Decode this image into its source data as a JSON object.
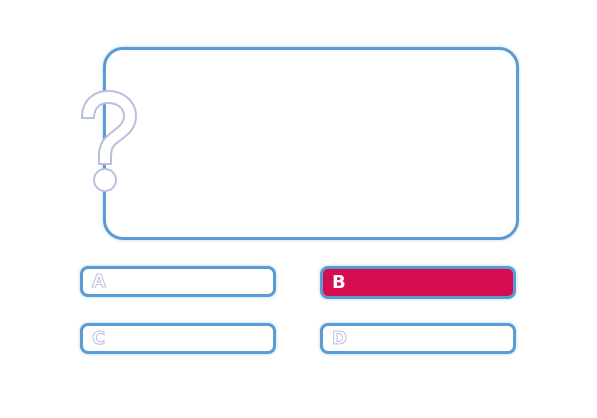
{
  "question": {
    "text": "",
    "icon": "question-mark-icon"
  },
  "options": [
    {
      "letter": "A",
      "text": "",
      "selected": false
    },
    {
      "letter": "B",
      "text": "",
      "selected": true
    },
    {
      "letter": "C",
      "text": "",
      "selected": false
    },
    {
      "letter": "D",
      "text": "",
      "selected": false
    }
  ],
  "colors": {
    "border": "#5b9bd5",
    "selected_fill": "#d50d50",
    "letter_outline": "#b8c0e0"
  }
}
